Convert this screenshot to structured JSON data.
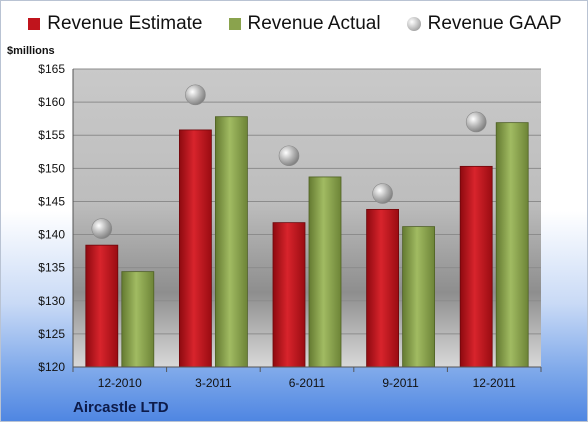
{
  "chart_data": {
    "type": "bar",
    "title": "",
    "ylabel": "$millions",
    "xlabel": "",
    "company": "Aircastle LTD",
    "categories": [
      "12-2010",
      "3-2011",
      "6-2011",
      "9-2011",
      "12-2011"
    ],
    "series": [
      {
        "name": "Revenue Estimate",
        "type": "bar",
        "color": "#c0141c",
        "values": [
          138.4,
          155.8,
          141.8,
          143.8,
          150.3
        ]
      },
      {
        "name": "Revenue Actual",
        "type": "bar",
        "color": "#8aa34d",
        "values": [
          134.4,
          157.8,
          148.7,
          141.2,
          156.9
        ]
      },
      {
        "name": "Revenue GAAP",
        "type": "scatter",
        "color": "#b4b4b4",
        "values": [
          140.9,
          161.1,
          151.9,
          146.2,
          157.0
        ]
      }
    ],
    "ylim": [
      120,
      165
    ],
    "yticks": [
      "$120",
      "$125",
      "$130",
      "$135",
      "$140",
      "$145",
      "$150",
      "$155",
      "$160",
      "$165"
    ],
    "grid": true,
    "legend": "top"
  }
}
